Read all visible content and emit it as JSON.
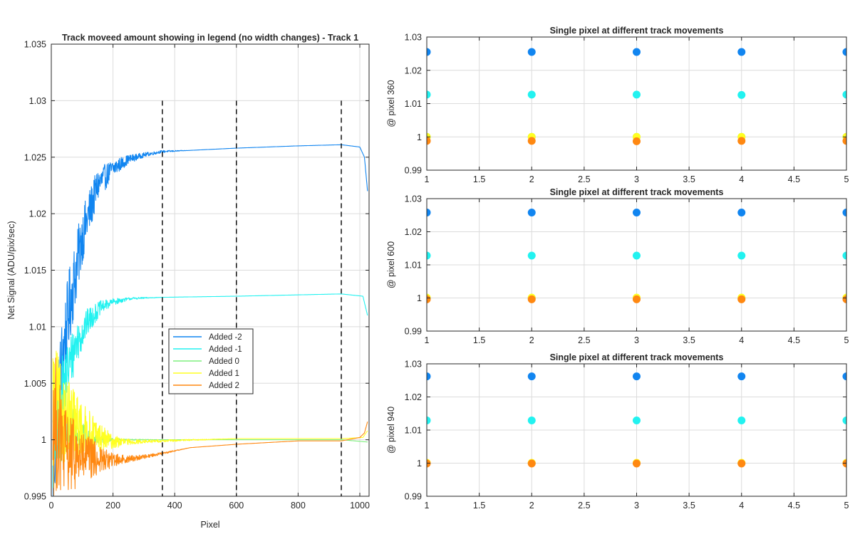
{
  "colors": {
    "added_m2": "#1185f0",
    "added_m1": "#22f2f0",
    "added_0": "#7ff07f",
    "added_1": "#ffff22",
    "added_2": "#ff8811",
    "grid": "#dcdcdc",
    "axis": "#262626",
    "marker_line": "#000000"
  },
  "chart_data": [
    {
      "type": "line",
      "title": "Track moveed amount showing in legend (no width changes) - Track 1",
      "xlabel": "Pixel",
      "ylabel": "Net Signal (ADU/pix/sec)",
      "xlim": [
        0,
        1030
      ],
      "ylim": [
        0.995,
        1.035
      ],
      "xticks": [
        "0",
        "200",
        "400",
        "600",
        "800",
        "1000"
      ],
      "xtick_values": [
        0,
        200,
        400,
        600,
        800,
        1000
      ],
      "yticks": [
        "0.995",
        "1",
        "1.005",
        "1.01",
        "1.015",
        "1.02",
        "1.025",
        "1.03",
        "1.035"
      ],
      "ytick_values": [
        0.995,
        1.0,
        1.005,
        1.01,
        1.015,
        1.02,
        1.025,
        1.03,
        1.035
      ],
      "grid": true,
      "legend": "center",
      "vertical_markers": {
        "x": [
          360,
          600,
          940
        ],
        "y_range": [
          0.995,
          1.03
        ],
        "style": "dashed"
      },
      "series": [
        {
          "name": "Added -2",
          "color_key": "added_m2",
          "x": [
            5,
            30,
            60,
            100,
            150,
            200,
            250,
            300,
            360,
            450,
            600,
            800,
            940,
            1000,
            1015,
            1025
          ],
          "y": [
            0.996,
            1.006,
            1.012,
            1.018,
            1.0225,
            1.024,
            1.0248,
            1.0252,
            1.0255,
            1.0256,
            1.0258,
            1.026,
            1.0261,
            1.0259,
            1.025,
            1.022
          ],
          "noise": [
            0.004,
            0.004,
            0.0035,
            0.0025,
            0.0015,
            0.0008,
            0.0004,
            0.0002,
            0.0001,
            0,
            0,
            0,
            0,
            0,
            0,
            0
          ]
        },
        {
          "name": "Added -1",
          "color_key": "added_m1",
          "x": [
            5,
            40,
            80,
            120,
            160,
            200,
            260,
            360,
            600,
            940,
            1010,
            1025
          ],
          "y": [
            0.999,
            1.005,
            1.0085,
            1.0105,
            1.0117,
            1.0122,
            1.0125,
            1.0126,
            1.0127,
            1.0129,
            1.0127,
            1.011
          ],
          "noise": [
            0.004,
            0.003,
            0.002,
            0.0012,
            0.0006,
            0.0003,
            0.0001,
            0,
            0,
            0,
            0,
            0
          ]
        },
        {
          "name": "Added 0",
          "color_key": "added_0",
          "x": [
            5,
            40,
            100,
            160,
            200,
            360,
            600,
            940,
            1025
          ],
          "y": [
            1.002,
            1.001,
            1.0003,
            1.0001,
            1.0,
            1.0,
            1.0,
            1.0,
            0.9998
          ],
          "noise": [
            0.005,
            0.003,
            0.0012,
            0.0004,
            0.0001,
            0,
            0,
            0,
            0
          ]
        },
        {
          "name": "Added 1",
          "color_key": "added_1",
          "x": [
            5,
            40,
            100,
            160,
            200,
            260,
            360,
            600,
            940,
            1010,
            1025
          ],
          "y": [
            1.003,
            1.002,
            1.0008,
            1.0002,
            0.9998,
            0.9998,
            0.9999,
            1.0001,
            1.0001,
            1.0002,
            1.0008
          ],
          "noise": [
            0.006,
            0.004,
            0.0025,
            0.0012,
            0.0006,
            0.0002,
            0.0001,
            0,
            0,
            0,
            0
          ]
        },
        {
          "name": "Added 2",
          "color_key": "added_2",
          "x": [
            5,
            40,
            100,
            160,
            200,
            250,
            300,
            360,
            450,
            600,
            800,
            940,
            1000,
            1015,
            1025
          ],
          "y": [
            1.002,
            0.999,
            0.9984,
            0.9982,
            0.9982,
            0.9983,
            0.9985,
            0.9988,
            0.9993,
            0.9996,
            0.9999,
            0.9999,
            1.0002,
            1.0006,
            1.0016
          ],
          "noise": [
            0.007,
            0.004,
            0.0025,
            0.0012,
            0.0006,
            0.0003,
            0.0002,
            0.0001,
            0,
            0,
            0,
            0,
            0,
            0,
            0
          ]
        }
      ]
    },
    {
      "type": "scatter",
      "title": "Single pixel at different track movements",
      "ylabel": "@ pixel 360",
      "xlim": [
        1,
        5
      ],
      "ylim": [
        0.99,
        1.03
      ],
      "xticks": [
        "1",
        "1.5",
        "2",
        "2.5",
        "3",
        "3.5",
        "4",
        "4.5",
        "5"
      ],
      "xtick_values": [
        1,
        1.5,
        2,
        2.5,
        3,
        3.5,
        4,
        4.5,
        5
      ],
      "yticks": [
        "0.99",
        "1",
        "1.01",
        "1.02",
        "1.03"
      ],
      "ytick_values": [
        0.99,
        1.0,
        1.01,
        1.02,
        1.03
      ],
      "grid": true,
      "x": [
        1,
        2,
        3,
        4,
        5
      ],
      "series": [
        {
          "color_key": "added_m2",
          "values": [
            1.0255,
            1.0255,
            1.0255,
            1.0255,
            1.0255
          ]
        },
        {
          "color_key": "added_m1",
          "values": [
            1.0127,
            1.0127,
            1.0127,
            1.0126,
            1.0127
          ]
        },
        {
          "color_key": "added_0",
          "values": [
            1.0,
            1.0,
            1.0,
            1.0,
            1.0
          ]
        },
        {
          "color_key": "added_1",
          "values": [
            1.0,
            1.0,
            1.0,
            1.0,
            1.0
          ]
        },
        {
          "color_key": "added_2",
          "values": [
            0.9988,
            0.9988,
            0.9987,
            0.9988,
            0.9988
          ]
        }
      ]
    },
    {
      "type": "scatter",
      "title": "Single pixel at different track movements",
      "ylabel": "@ pixel 600",
      "xlim": [
        1,
        5
      ],
      "ylim": [
        0.99,
        1.03
      ],
      "xticks": [
        "1",
        "1.5",
        "2",
        "2.5",
        "3",
        "3.5",
        "4",
        "4.5",
        "5"
      ],
      "xtick_values": [
        1,
        1.5,
        2,
        2.5,
        3,
        3.5,
        4,
        4.5,
        5
      ],
      "yticks": [
        "0.99",
        "1",
        "1.01",
        "1.02",
        "1.03"
      ],
      "ytick_values": [
        0.99,
        1.0,
        1.01,
        1.02,
        1.03
      ],
      "grid": true,
      "x": [
        1,
        2,
        3,
        4,
        5
      ],
      "series": [
        {
          "color_key": "added_m2",
          "values": [
            1.0258,
            1.0258,
            1.0258,
            1.0258,
            1.0258
          ]
        },
        {
          "color_key": "added_m1",
          "values": [
            1.0128,
            1.0128,
            1.0128,
            1.0128,
            1.0128
          ]
        },
        {
          "color_key": "added_0",
          "values": [
            1.0,
            1.0,
            1.0,
            1.0,
            1.0
          ]
        },
        {
          "color_key": "added_1",
          "values": [
            1.0001,
            1.0001,
            1.0001,
            1.0001,
            1.0001
          ]
        },
        {
          "color_key": "added_2",
          "values": [
            0.9996,
            0.9996,
            0.9996,
            0.9996,
            0.9996
          ]
        }
      ]
    },
    {
      "type": "scatter",
      "title": "Single pixel at different track movements",
      "ylabel": "@ pixel 940",
      "xlim": [
        1,
        5
      ],
      "ylim": [
        0.99,
        1.03
      ],
      "xticks": [
        "1",
        "1.5",
        "2",
        "2.5",
        "3",
        "3.5",
        "4",
        "4.5",
        "5"
      ],
      "xtick_values": [
        1,
        1.5,
        2,
        2.5,
        3,
        3.5,
        4,
        4.5,
        5
      ],
      "yticks": [
        "0.99",
        "1",
        "1.01",
        "1.02",
        "1.03"
      ],
      "ytick_values": [
        0.99,
        1.0,
        1.01,
        1.02,
        1.03
      ],
      "grid": true,
      "x": [
        1,
        2,
        3,
        4,
        5
      ],
      "series": [
        {
          "color_key": "added_m2",
          "values": [
            1.0262,
            1.0262,
            1.0262,
            1.0262,
            1.0262
          ]
        },
        {
          "color_key": "added_m1",
          "values": [
            1.0129,
            1.0129,
            1.0129,
            1.0129,
            1.0129
          ]
        },
        {
          "color_key": "added_0",
          "values": [
            1.0,
            1.0,
            1.0,
            1.0,
            1.0
          ]
        },
        {
          "color_key": "added_1",
          "values": [
            1.0001,
            1.0001,
            1.0001,
            1.0001,
            1.0001
          ]
        },
        {
          "color_key": "added_2",
          "values": [
            0.9999,
            0.9999,
            0.9999,
            0.9999,
            0.9999
          ]
        }
      ]
    }
  ]
}
